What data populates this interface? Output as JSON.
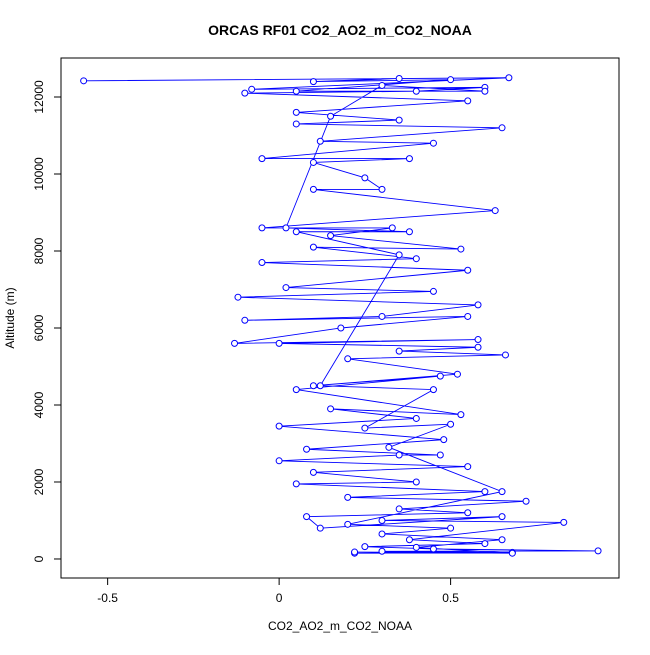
{
  "chart_data": {
    "type": "line",
    "title": "ORCAS RF01 CO2_AO2_m_CO2_NOAA",
    "x_label": "CO2_AO2_m_CO2_NOAA",
    "y_label": "Altitude (m)",
    "xlim": [
      -0.636,
      0.991
    ],
    "ylim": [
      -494,
      13013
    ],
    "xticks": [
      -0.5,
      0.0,
      0.5
    ],
    "yticks": [
      0,
      2000,
      4000,
      6000,
      8000,
      10000,
      12000
    ],
    "x": [
      0.22,
      0.68,
      0.3,
      0.93,
      0.45,
      0.25,
      0.6,
      0.38,
      0.83,
      0.3,
      0.65,
      0.12,
      0.08,
      0.55,
      0.35,
      0.72,
      0.2,
      0.6,
      0.05,
      0.4,
      0.1,
      0.55,
      0.0,
      0.35,
      0.47,
      0.08,
      0.48,
      0.0,
      0.4,
      0.15,
      0.53,
      0.05,
      0.47,
      0.1,
      0.52,
      0.2,
      0.66,
      0.35,
      0.58,
      0.0,
      0.58,
      -0.13,
      0.18,
      0.55,
      -0.1,
      0.3,
      0.58,
      -0.12,
      0.45,
      0.02,
      0.55,
      -0.05,
      0.4,
      0.1,
      0.53,
      0.15,
      0.33,
      -0.05,
      0.63,
      0.1,
      0.3,
      0.25,
      0.1,
      0.38,
      -0.05,
      0.45,
      0.12,
      0.65,
      0.05,
      0.35,
      0.05,
      0.55,
      -0.1,
      0.4,
      0.6,
      -0.08,
      0.67,
      -0.57,
      0.35,
      0.1,
      0.5,
      0.05,
      0.6,
      0.3,
      0.15,
      0.02,
      0.38,
      0.05,
      0.35,
      0.12,
      0.45,
      0.25,
      0.5,
      0.32,
      0.65,
      0.2,
      0.5,
      0.3,
      0.65,
      0.4,
      0.68,
      0.22
    ],
    "series": [
      {
        "name": "CO2_AO2_m_CO2_NOAA",
        "color": "#0000ff",
        "values": [
          150,
          170,
          200,
          210,
          260,
          320,
          400,
          500,
          950,
          1000,
          1100,
          800,
          1100,
          1200,
          1300,
          1500,
          1600,
          1750,
          1950,
          2000,
          2250,
          2400,
          2550,
          2700,
          2700,
          2850,
          3100,
          3450,
          3650,
          3900,
          3750,
          4400,
          4750,
          4500,
          4800,
          5200,
          5300,
          5400,
          5500,
          5600,
          5700,
          5600,
          6000,
          6300,
          6200,
          6300,
          6600,
          6800,
          6950,
          7050,
          7500,
          7700,
          7800,
          8100,
          8050,
          8400,
          8600,
          8600,
          9050,
          9600,
          9600,
          9900,
          10300,
          10400,
          10400,
          10800,
          10850,
          11200,
          11300,
          11400,
          11600,
          11900,
          12100,
          12150,
          12250,
          12200,
          12500,
          12420,
          12480,
          12400,
          12450,
          12150,
          12150,
          12300,
          11500,
          8600,
          8500,
          8500,
          7900,
          4500,
          4400,
          3400,
          3500,
          2900,
          1750,
          900,
          800,
          650,
          500,
          300,
          150,
          180
        ]
      }
    ]
  }
}
